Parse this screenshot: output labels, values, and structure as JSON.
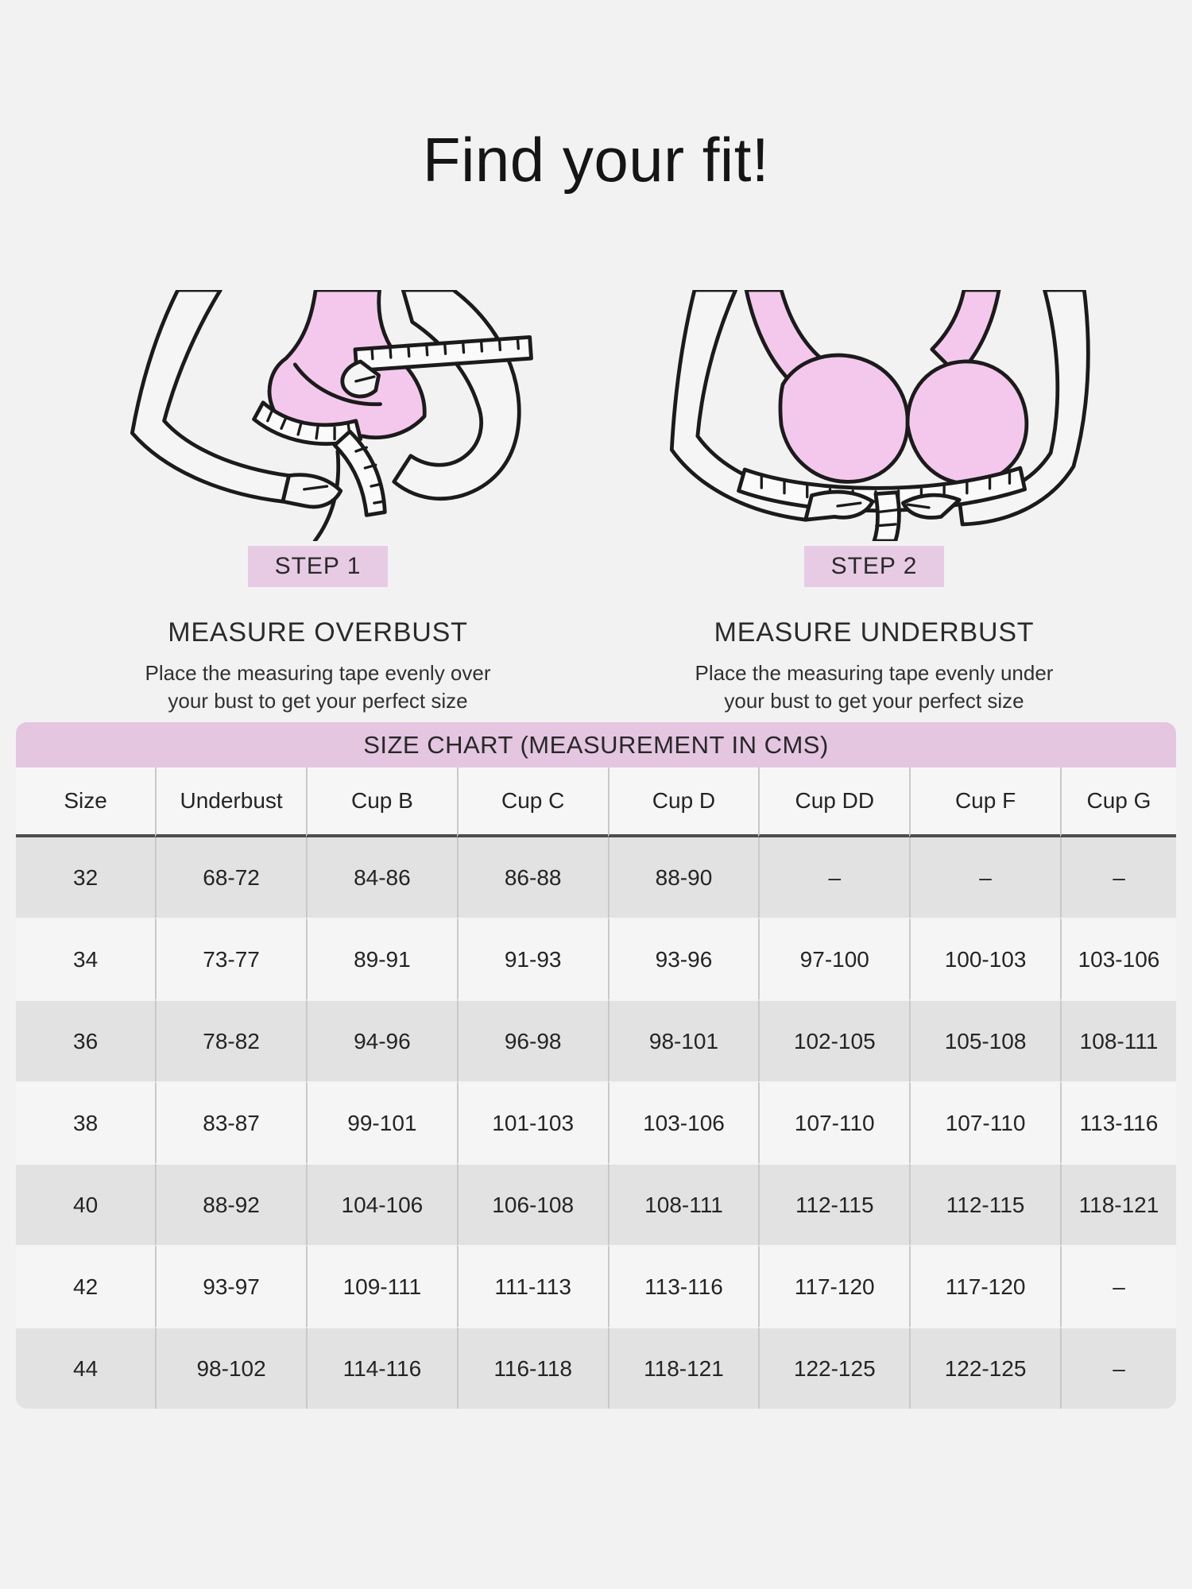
{
  "page": {
    "title": "Find your fit!"
  },
  "colors": {
    "background": "#f3f2f3",
    "banner_pink": "#e4c6e1",
    "badge_pink": "#e7cbe4",
    "bra_pink": "#f4c8ec",
    "row_gray": "#e3e2e3",
    "row_light": "#f6f5f6",
    "header_divider": "#4d4d4d"
  },
  "steps": [
    {
      "badge": "STEP 1",
      "heading": "MEASURE OVERBUST",
      "description_line1": "Place the measuring tape evenly over",
      "description_line2": "your bust to get your perfect size",
      "illustration": "overbust-measure-illustration"
    },
    {
      "badge": "STEP 2",
      "heading": "MEASURE UNDERBUST",
      "description_line1": "Place the measuring tape evenly under",
      "description_line2": "your bust to get your perfect size",
      "illustration": "underbust-measure-illustration"
    }
  ],
  "size_chart": {
    "title": "SIZE CHART (MEASUREMENT IN CMS)",
    "columns": [
      "Size",
      "Underbust",
      "Cup B",
      "Cup C",
      "Cup D",
      "Cup DD",
      "Cup F",
      "Cup G"
    ],
    "rows": [
      [
        "32",
        "68-72",
        "84-86",
        "86-88",
        "88-90",
        "–",
        "–",
        "–"
      ],
      [
        "34",
        "73-77",
        "89-91",
        "91-93",
        "93-96",
        "97-100",
        "100-103",
        "103-106"
      ],
      [
        "36",
        "78-82",
        "94-96",
        "96-98",
        "98-101",
        "102-105",
        "105-108",
        "108-111"
      ],
      [
        "38",
        "83-87",
        "99-101",
        "101-103",
        "103-106",
        "107-110",
        "107-110",
        "113-116"
      ],
      [
        "40",
        "88-92",
        "104-106",
        "106-108",
        "108-111",
        "112-115",
        "112-115",
        "118-121"
      ],
      [
        "42",
        "93-97",
        "109-111",
        "111-113",
        "113-116",
        "117-120",
        "117-120",
        "–"
      ],
      [
        "44",
        "98-102",
        "114-116",
        "116-118",
        "118-121",
        "122-125",
        "122-125",
        "–"
      ]
    ]
  }
}
